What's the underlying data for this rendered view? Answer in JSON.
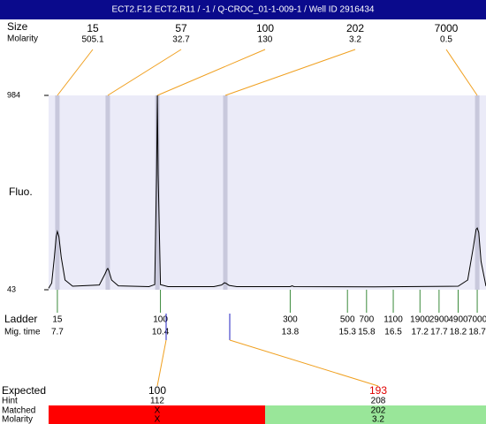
{
  "header": {
    "title": "ECT2.F12 ECT2.R11 / -1 / Q-CROC_01-1-009-1 / Well ID 2916434"
  },
  "chart_data": {
    "type": "line",
    "y_label": "Fluo.",
    "ylim": [
      43,
      984
    ],
    "yticks": [
      43,
      984
    ],
    "xlim": [
      7.47,
      18.93
    ],
    "color": "#000000",
    "x": [
      7.47,
      7.55,
      7.62,
      7.67,
      7.7,
      7.74,
      7.8,
      7.9,
      8.1,
      8.8,
      8.95,
      9.0,
      9.02,
      9.05,
      9.12,
      9.3,
      10.1,
      10.25,
      10.3,
      10.32,
      10.34,
      10.4,
      10.6,
      11.8,
      12.0,
      12.08,
      12.12,
      12.2,
      12.4,
      13.8,
      13.85,
      13.9,
      16.0,
      18.2,
      18.45,
      18.6,
      18.67,
      18.7,
      18.74,
      18.8,
      18.93
    ],
    "values": [
      50,
      75,
      200,
      300,
      325,
      300,
      200,
      90,
      60,
      66,
      120,
      142,
      146,
      135,
      90,
      62,
      58,
      68,
      600,
      984,
      600,
      68,
      58,
      58,
      66,
      77,
      74,
      64,
      58,
      58,
      62,
      58,
      57,
      60,
      90,
      250,
      335,
      342,
      320,
      180,
      60
    ],
    "peaks": {
      "row_labels": [
        "Size",
        "Molarity"
      ],
      "items": [
        {
          "size": 15,
          "molarity": 505.1,
          "time": 7.7
        },
        {
          "size": 57,
          "molarity": 32.7,
          "time": 9.02
        },
        {
          "size": 100,
          "molarity": 130,
          "time": 10.32
        },
        {
          "size": 202,
          "molarity": 3.2,
          "time": 12.1
        },
        {
          "size": 7000,
          "molarity": 0.5,
          "time": 18.7
        }
      ]
    },
    "ladder": {
      "row_labels": [
        "Ladder",
        "Mig. time"
      ],
      "sizes": [
        15,
        100,
        300,
        500,
        700,
        1100,
        1900,
        2900,
        4900,
        7000
      ],
      "times": [
        7.7,
        10.4,
        13.8,
        15.3,
        15.8,
        16.5,
        17.2,
        17.7,
        18.2,
        18.7
      ]
    }
  },
  "results": {
    "row_labels": [
      "Expected",
      "Hint",
      "Matched",
      "Molarity"
    ],
    "columns": [
      {
        "expected": 100,
        "hint": 112,
        "matched": "X",
        "molarity": "X"
      },
      {
        "expected": 193,
        "hint": 208,
        "matched": 202,
        "molarity": 3.2
      }
    ]
  }
}
